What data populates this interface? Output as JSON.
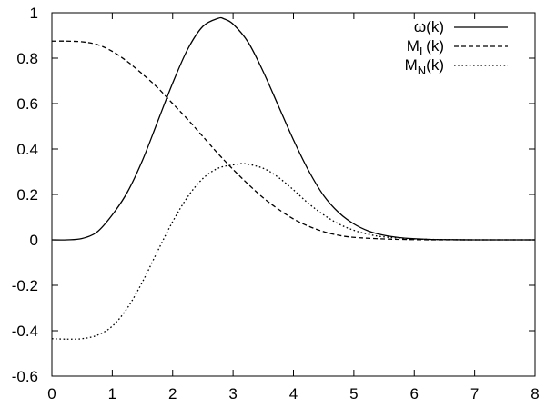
{
  "chart_data": {
    "type": "line",
    "title": "",
    "xlabel": "",
    "ylabel": "",
    "xlim": [
      0,
      8
    ],
    "ylim": [
      -0.6,
      1
    ],
    "xticks": [
      0,
      1,
      2,
      3,
      4,
      5,
      6,
      7,
      8
    ],
    "yticks": [
      -0.6,
      -0.4,
      -0.2,
      0,
      0.2,
      0.4,
      0.6,
      0.8,
      1
    ],
    "grid": false,
    "legend_position": "top-right",
    "series": [
      {
        "name": "ω(k)",
        "legend_main": "ω",
        "legend_sub": "",
        "legend_tail": "(k)",
        "style": "solid",
        "color": "#000000",
        "x": [
          0,
          0.25,
          0.5,
          0.75,
          1.0,
          1.25,
          1.5,
          1.75,
          2.0,
          2.25,
          2.5,
          2.75,
          2.85,
          3.0,
          3.25,
          3.5,
          3.75,
          4.0,
          4.25,
          4.5,
          4.75,
          5.0,
          5.25,
          5.5,
          5.75,
          6.0,
          6.25,
          6.5,
          7.0,
          7.5,
          8.0
        ],
        "y": [
          0.0,
          0.0,
          0.006,
          0.035,
          0.11,
          0.21,
          0.35,
          0.52,
          0.69,
          0.84,
          0.94,
          0.975,
          0.973,
          0.95,
          0.87,
          0.74,
          0.59,
          0.44,
          0.305,
          0.195,
          0.12,
          0.07,
          0.038,
          0.02,
          0.01,
          0.005,
          0.002,
          0.001,
          0.0,
          0.0,
          0.0
        ]
      },
      {
        "name": "ML(k)",
        "legend_main": "M",
        "legend_sub": "L",
        "legend_tail": "(k)",
        "style": "dashed",
        "color": "#000000",
        "x": [
          0,
          0.25,
          0.5,
          0.75,
          1.0,
          1.25,
          1.5,
          1.75,
          2.0,
          2.25,
          2.5,
          2.75,
          3.0,
          3.25,
          3.5,
          3.75,
          4.0,
          4.25,
          4.5,
          4.75,
          5.0,
          5.5,
          6.0,
          6.5,
          7.0,
          8.0
        ],
        "y": [
          0.875,
          0.875,
          0.872,
          0.86,
          0.83,
          0.785,
          0.73,
          0.67,
          0.6,
          0.53,
          0.455,
          0.38,
          0.31,
          0.245,
          0.185,
          0.135,
          0.092,
          0.06,
          0.036,
          0.02,
          0.011,
          0.004,
          0.001,
          0.0,
          0.0,
          0.0
        ]
      },
      {
        "name": "MN(k)",
        "legend_main": "M",
        "legend_sub": "N",
        "legend_tail": "(k)",
        "style": "dotted",
        "color": "#000000",
        "x": [
          0,
          0.25,
          0.5,
          0.75,
          1.0,
          1.25,
          1.5,
          1.75,
          2.0,
          2.25,
          2.5,
          2.75,
          3.0,
          3.2,
          3.5,
          3.75,
          4.0,
          4.25,
          4.5,
          4.75,
          5.0,
          5.25,
          5.5,
          6.0,
          6.5,
          7.0,
          8.0
        ],
        "y": [
          -0.435,
          -0.437,
          -0.435,
          -0.42,
          -0.38,
          -0.3,
          -0.185,
          -0.05,
          0.08,
          0.19,
          0.27,
          0.315,
          0.33,
          0.335,
          0.315,
          0.275,
          0.22,
          0.16,
          0.11,
          0.07,
          0.042,
          0.024,
          0.013,
          0.004,
          0.001,
          0.0,
          0.0
        ]
      }
    ]
  }
}
